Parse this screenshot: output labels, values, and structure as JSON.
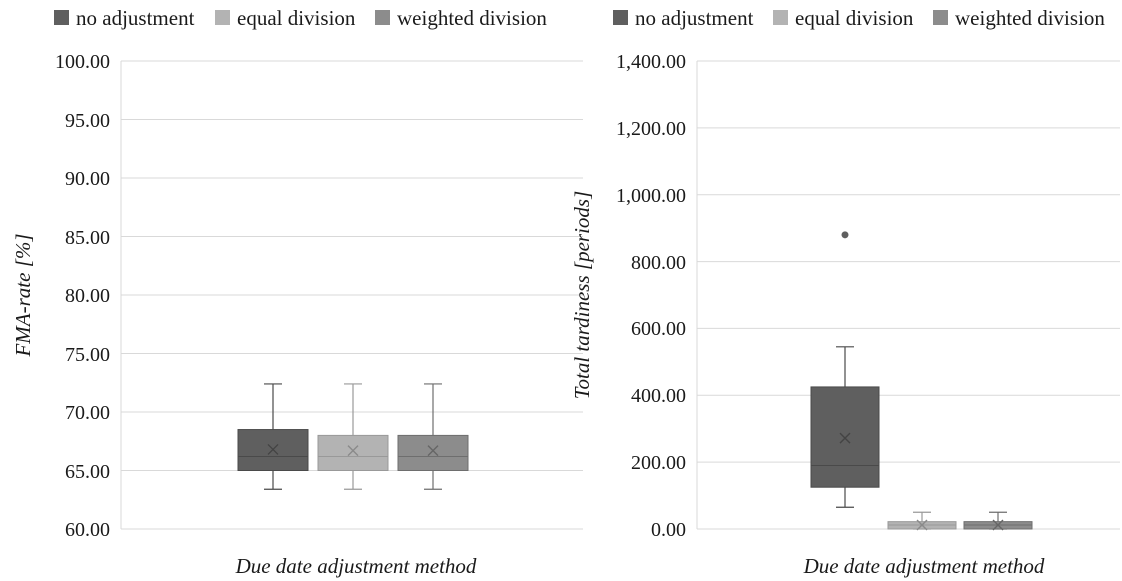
{
  "colors": {
    "no_adjustment": "#5f5f5f",
    "equal_division": "#b3b3b3",
    "weighted_division": "#8c8c8c",
    "gridline": "#d9d9d9"
  },
  "chart_data": [
    {
      "type": "box",
      "legend": {
        "placement": "top",
        "entries": [
          "no adjustment",
          "equal division",
          "weighted division"
        ]
      },
      "xlabel": "Due date adjustment method",
      "ylabel": "FMA-rate [%]",
      "ylim": [
        60,
        100
      ],
      "grid": true,
      "yticks": [
        "100.00",
        "95.00",
        "90.00",
        "85.00",
        "80.00",
        "75.00",
        "70.00",
        "65.00",
        "60.00"
      ],
      "series": [
        {
          "name": "no adjustment",
          "min": 63.4,
          "q1": 65.0,
          "median": 66.2,
          "mean": 66.8,
          "q3": 68.5,
          "max": 72.4,
          "outliers": []
        },
        {
          "name": "equal division",
          "min": 63.4,
          "q1": 65.0,
          "median": 66.2,
          "mean": 66.7,
          "q3": 68.0,
          "max": 72.4,
          "outliers": []
        },
        {
          "name": "weighted division",
          "min": 63.4,
          "q1": 65.0,
          "median": 66.2,
          "mean": 66.7,
          "q3": 68.0,
          "max": 72.4,
          "outliers": []
        }
      ]
    },
    {
      "type": "box",
      "legend": {
        "placement": "top",
        "entries": [
          "no adjustment",
          "equal division",
          "weighted division"
        ]
      },
      "xlabel": "Due date adjustment method",
      "ylabel": "Total tardiness [periods]",
      "ylim": [
        0,
        1400
      ],
      "grid": true,
      "yticks": [
        "1,400.00",
        "1,200.00",
        "1,000.00",
        "800.00",
        "600.00",
        "400.00",
        "200.00",
        "0.00"
      ],
      "series": [
        {
          "name": "no adjustment",
          "min": 65,
          "q1": 125,
          "median": 190,
          "mean": 272,
          "q3": 425,
          "max": 545,
          "outliers": [
            880
          ]
        },
        {
          "name": "equal division",
          "min": 0,
          "q1": 0,
          "median": 12,
          "mean": 12,
          "q3": 22,
          "max": 50,
          "outliers": []
        },
        {
          "name": "weighted division",
          "min": 0,
          "q1": 0,
          "median": 12,
          "mean": 12,
          "q3": 22,
          "max": 50,
          "outliers": []
        }
      ]
    }
  ]
}
